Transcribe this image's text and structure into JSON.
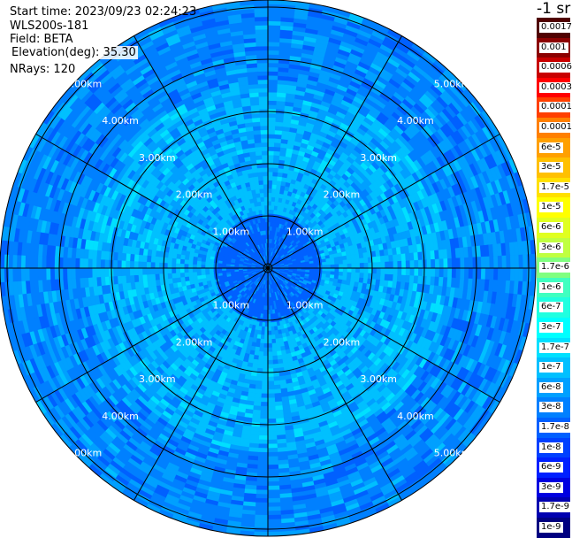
{
  "info": {
    "start_time": "Start time: 2023/09/23 02:24:23",
    "instrument": "WLS200s-181",
    "field": "Field: BETA",
    "elevation": "Elevation(deg): 35.30",
    "nrays": "NRays: 120"
  },
  "chart_data": {
    "type": "heatmap",
    "projection": "polar-ppi",
    "field": "BETA",
    "range_rings_km": [
      1,
      2,
      3,
      4,
      5
    ],
    "range_labels": [
      "1.00km",
      "2.00km",
      "3.00km",
      "4.00km",
      "5.00km"
    ],
    "spokes_deg": [
      0,
      30,
      60,
      90,
      120,
      150,
      180,
      210,
      240,
      270,
      300,
      330
    ],
    "colorbar": {
      "unit": "-1 sr",
      "tick_labels": [
        "0.0017",
        "0.001",
        "0.0006",
        "0.0003",
        "0.00017",
        "0.0001",
        "6e-5",
        "3e-5",
        "1.7e-5",
        "1e-5",
        "6e-6",
        "3e-6",
        "1.7e-6",
        "1e-6",
        "6e-7",
        "3e-7",
        "1.7e-7",
        "1e-7",
        "6e-8",
        "3e-8",
        "1.7e-8",
        "1e-8",
        "6e-9",
        "3e-9",
        "1.7e-9",
        "1e-9"
      ],
      "colors": [
        "#500000",
        "#8c0000",
        "#c80000",
        "#ff0000",
        "#ff4000",
        "#ff8000",
        "#ffa000",
        "#ffc000",
        "#ffe000",
        "#ffff00",
        "#e0ff20",
        "#c0ff40",
        "#80ff80",
        "#40ffc0",
        "#20ffe0",
        "#00ffff",
        "#00e0ff",
        "#00c0ff",
        "#00a0ff",
        "#0080ff",
        "#0060ff",
        "#0040ff",
        "#0020ff",
        "#0000e0",
        "#0000b0",
        "#000080"
      ]
    },
    "dominant_values": "approximately 1e-7 to 3e-8 across the scan, near 3e-8 close to the radar"
  }
}
